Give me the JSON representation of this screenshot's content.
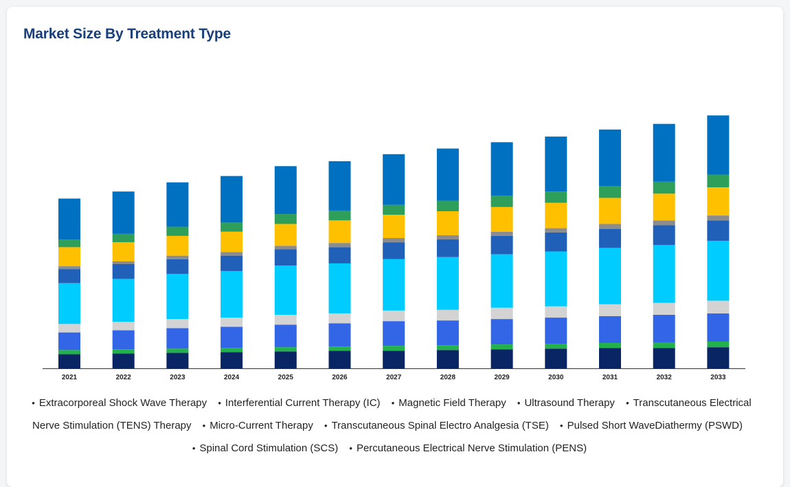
{
  "chart_data": {
    "type": "bar",
    "stacked": true,
    "title": "Market Size By Treatment Type",
    "xlabel": "",
    "ylabel": "",
    "categories": [
      "2021",
      "2022",
      "2023",
      "2024",
      "2025",
      "2026",
      "2027",
      "2028",
      "2029",
      "2030",
      "2031",
      "2032",
      "2033"
    ],
    "legend_position": "bottom",
    "grid": false,
    "legend_labels": [
      "Extracorporeal Shock Wave Therapy",
      "Interferential Current Therapy (IC)",
      "Magnetic Field Therapy",
      "Ultrasound Therapy",
      "Transcutaneous Electrical Nerve Stimulation (TENS) Therapy",
      "Micro-Current Therapy",
      "Transcutaneous Spinal Electro Analgesia (TSE)",
      "Pulsed Short WaveDiathermy (PSWD)",
      "Spinal Cord Stimulation (SCS)",
      "Percutaneous Electrical Nerve Stimulation (PENS)"
    ],
    "segments": [
      {
        "color": "#0a2563",
        "values": [
          20,
          21,
          22,
          23,
          24,
          25,
          25,
          26,
          27,
          28,
          29,
          29,
          30
        ]
      },
      {
        "color": "#22b14c",
        "values": [
          6,
          6,
          6,
          6,
          6,
          6,
          7,
          7,
          7,
          7,
          7,
          8,
          8
        ]
      },
      {
        "color": "#3366e6",
        "values": [
          25,
          27,
          29,
          30,
          32,
          33,
          35,
          35,
          36,
          37,
          38,
          39,
          40
        ]
      },
      {
        "color": "#d3d3d3",
        "values": [
          12,
          12,
          13,
          13,
          14,
          14,
          15,
          15,
          16,
          16,
          17,
          17,
          18
        ]
      },
      {
        "color": "#00ccff",
        "values": [
          58,
          61,
          64,
          66,
          70,
          71,
          73,
          75,
          76,
          78,
          80,
          82,
          85
        ]
      },
      {
        "color": "#2060b8",
        "values": [
          20,
          21,
          21,
          22,
          23,
          23,
          24,
          25,
          26,
          27,
          27,
          28,
          29
        ]
      },
      {
        "color": "#8c8c8c",
        "values": [
          4,
          4,
          5,
          5,
          5,
          6,
          6,
          6,
          6,
          6,
          7,
          7,
          7
        ]
      },
      {
        "color": "#ffc000",
        "values": [
          27,
          27,
          28,
          29,
          31,
          32,
          33,
          34,
          35,
          36,
          37,
          38,
          40
        ]
      },
      {
        "color": "#2e9e5b",
        "values": [
          11,
          12,
          13,
          13,
          14,
          14,
          14,
          15,
          16,
          16,
          17,
          17,
          18
        ]
      },
      {
        "color": "#0070c0",
        "values": [
          58,
          60,
          63,
          66,
          68,
          70,
          72,
          74,
          76,
          78,
          80,
          82,
          84
        ]
      }
    ],
    "ylim": [
      0,
      370
    ]
  }
}
